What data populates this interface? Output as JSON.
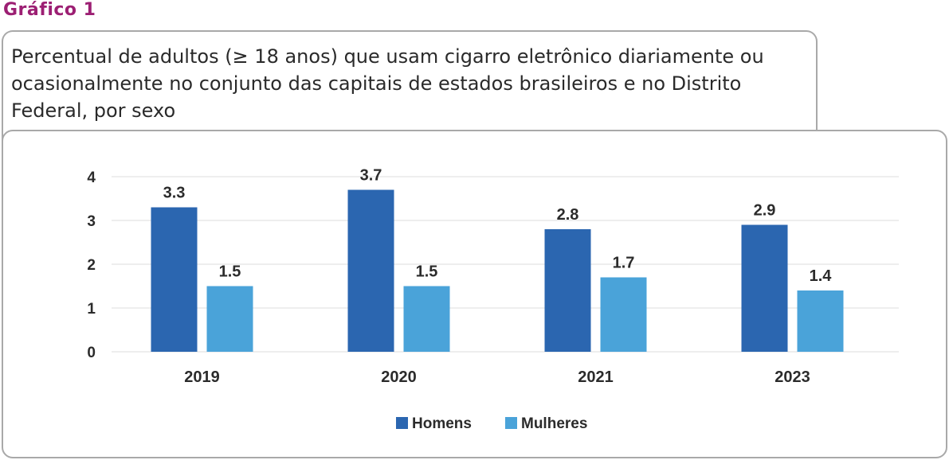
{
  "figure_label": "Gráfico 1",
  "chart_title": "Percentual de adultos (≥ 18 anos) que usam cigarro eletrônico diariamente ou ocasionalmente no conjunto das capitais de estados brasileiros e no Distrito Federal, por sexo",
  "chart_data": {
    "type": "bar",
    "title": "Percentual de adultos (≥ 18 anos) que usam cigarro eletrônico diariamente ou ocasionalmente no conjunto das capitais de estados brasileiros e no Distrito Federal, por sexo",
    "categories": [
      "2019",
      "2020",
      "2021",
      "2023"
    ],
    "series": [
      {
        "name": "Homens",
        "values": [
          3.3,
          3.7,
          2.8,
          2.9
        ],
        "value_labels": [
          "3.3",
          "3.7",
          "2.8",
          "2.9"
        ],
        "color": "#2b66b0"
      },
      {
        "name": "Mulheres",
        "values": [
          1.5,
          1.5,
          1.7,
          1.4
        ],
        "value_labels": [
          "1.5",
          "1.5",
          "1.7",
          "1.4"
        ],
        "color": "#4aa3d9"
      }
    ],
    "yticks": [
      "0",
      "1",
      "2",
      "3",
      "4"
    ],
    "ylim": [
      0,
      4
    ],
    "xlabel": "",
    "ylabel": "",
    "grid": true,
    "legend": "bottom-center"
  }
}
